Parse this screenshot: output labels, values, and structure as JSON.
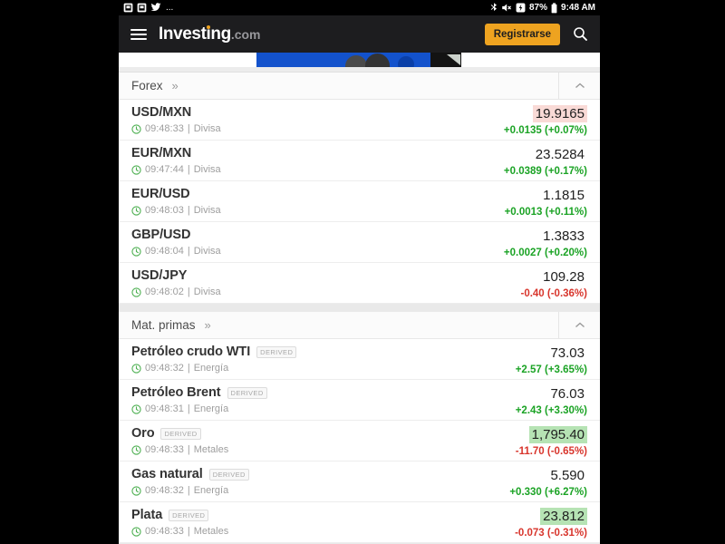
{
  "ui": {
    "meta_separator": "|",
    "more_glyph": "»"
  },
  "colors": {
    "accent": "#eea320",
    "up": "#1ba325",
    "down": "#d8352c",
    "flash_up": "#b6e3b4",
    "flash_down": "#f9dad6"
  },
  "status_bar": {
    "more_label": "...",
    "battery_percent": "87%",
    "time": "9:48 AM"
  },
  "header": {
    "logo_pre": "Invest",
    "logo_i": "i",
    "logo_post": "ng",
    "logo_suffix": ".com",
    "register_label": "Registrarse"
  },
  "sections": [
    {
      "title": "Forex",
      "rows": [
        {
          "name": "USD/MXN",
          "badge": null,
          "time": "09:48:33",
          "category": "Divisa",
          "price": "19.9165",
          "price_flash": "down",
          "change": "+0.0135 (+0.07%)",
          "direction": "up"
        },
        {
          "name": "EUR/MXN",
          "badge": null,
          "time": "09:47:44",
          "category": "Divisa",
          "price": "23.5284",
          "price_flash": null,
          "change": "+0.0389 (+0.17%)",
          "direction": "up"
        },
        {
          "name": "EUR/USD",
          "badge": null,
          "time": "09:48:03",
          "category": "Divisa",
          "price": "1.1815",
          "price_flash": null,
          "change": "+0.0013 (+0.11%)",
          "direction": "up"
        },
        {
          "name": "GBP/USD",
          "badge": null,
          "time": "09:48:04",
          "category": "Divisa",
          "price": "1.3833",
          "price_flash": null,
          "change": "+0.0027 (+0.20%)",
          "direction": "up"
        },
        {
          "name": "USD/JPY",
          "badge": null,
          "time": "09:48:02",
          "category": "Divisa",
          "price": "109.28",
          "price_flash": null,
          "change": "-0.40 (-0.36%)",
          "direction": "down"
        }
      ]
    },
    {
      "title": "Mat. primas",
      "rows": [
        {
          "name": "Petróleo crudo WTI",
          "badge": "DERIVED",
          "time": "09:48:32",
          "category": "Energía",
          "price": "73.03",
          "price_flash": null,
          "change": "+2.57 (+3.65%)",
          "direction": "up"
        },
        {
          "name": "Petróleo Brent",
          "badge": "DERIVED",
          "time": "09:48:31",
          "category": "Energía",
          "price": "76.03",
          "price_flash": null,
          "change": "+2.43 (+3.30%)",
          "direction": "up"
        },
        {
          "name": "Oro",
          "badge": "DERIVED",
          "time": "09:48:33",
          "category": "Metales",
          "price": "1,795.40",
          "price_flash": "up",
          "change": "-11.70 (-0.65%)",
          "direction": "down"
        },
        {
          "name": "Gas natural",
          "badge": "DERIVED",
          "time": "09:48:32",
          "category": "Energía",
          "price": "5.590",
          "price_flash": null,
          "change": "+0.330 (+6.27%)",
          "direction": "up"
        },
        {
          "name": "Plata",
          "badge": "DERIVED",
          "time": "09:48:33",
          "category": "Metales",
          "price": "23.812",
          "price_flash": "up",
          "change": "-0.073 (-0.31%)",
          "direction": "down"
        }
      ]
    }
  ]
}
